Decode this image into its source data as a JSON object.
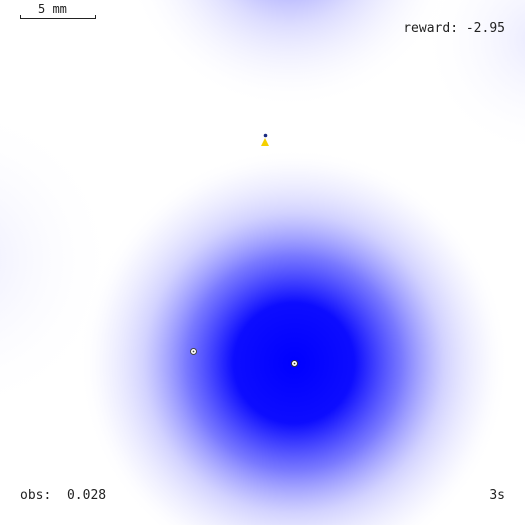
{
  "scale": {
    "label": "5 mm"
  },
  "hud": {
    "reward_label": "reward:",
    "reward_value": "-2.95",
    "obs_label": "obs:",
    "obs_value": "0.028",
    "time_label": "3s"
  },
  "field": {
    "color": "#0000ff",
    "background": "#ffffff"
  },
  "agent": {
    "body_color": "#f5d000",
    "head_color": "#1a2a80"
  },
  "markers": {
    "ring_color": "#444444"
  },
  "icons": {
    "agent": "agent-icon",
    "source": "source-marker-icon",
    "waypoint": "waypoint-marker-icon"
  }
}
